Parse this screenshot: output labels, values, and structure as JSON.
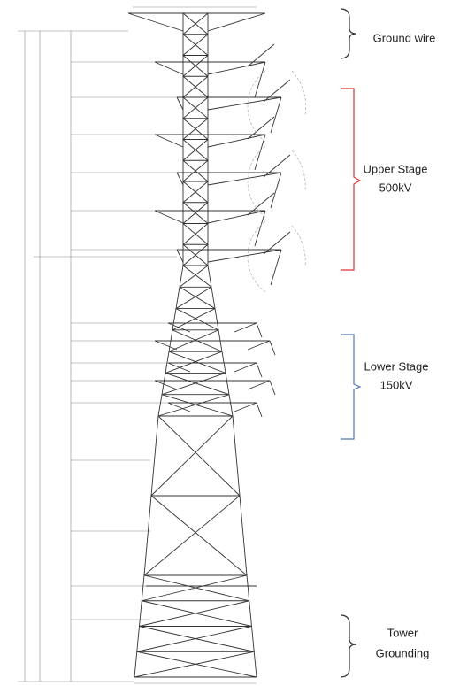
{
  "labels": {
    "ground_wire": "Ground wire",
    "upper_stage": [
      "Upper Stage",
      "500kV"
    ],
    "lower_stage": [
      "Lower Stage",
      "150kV"
    ],
    "tower_grounding": [
      "Tower",
      "Grounding"
    ]
  }
}
